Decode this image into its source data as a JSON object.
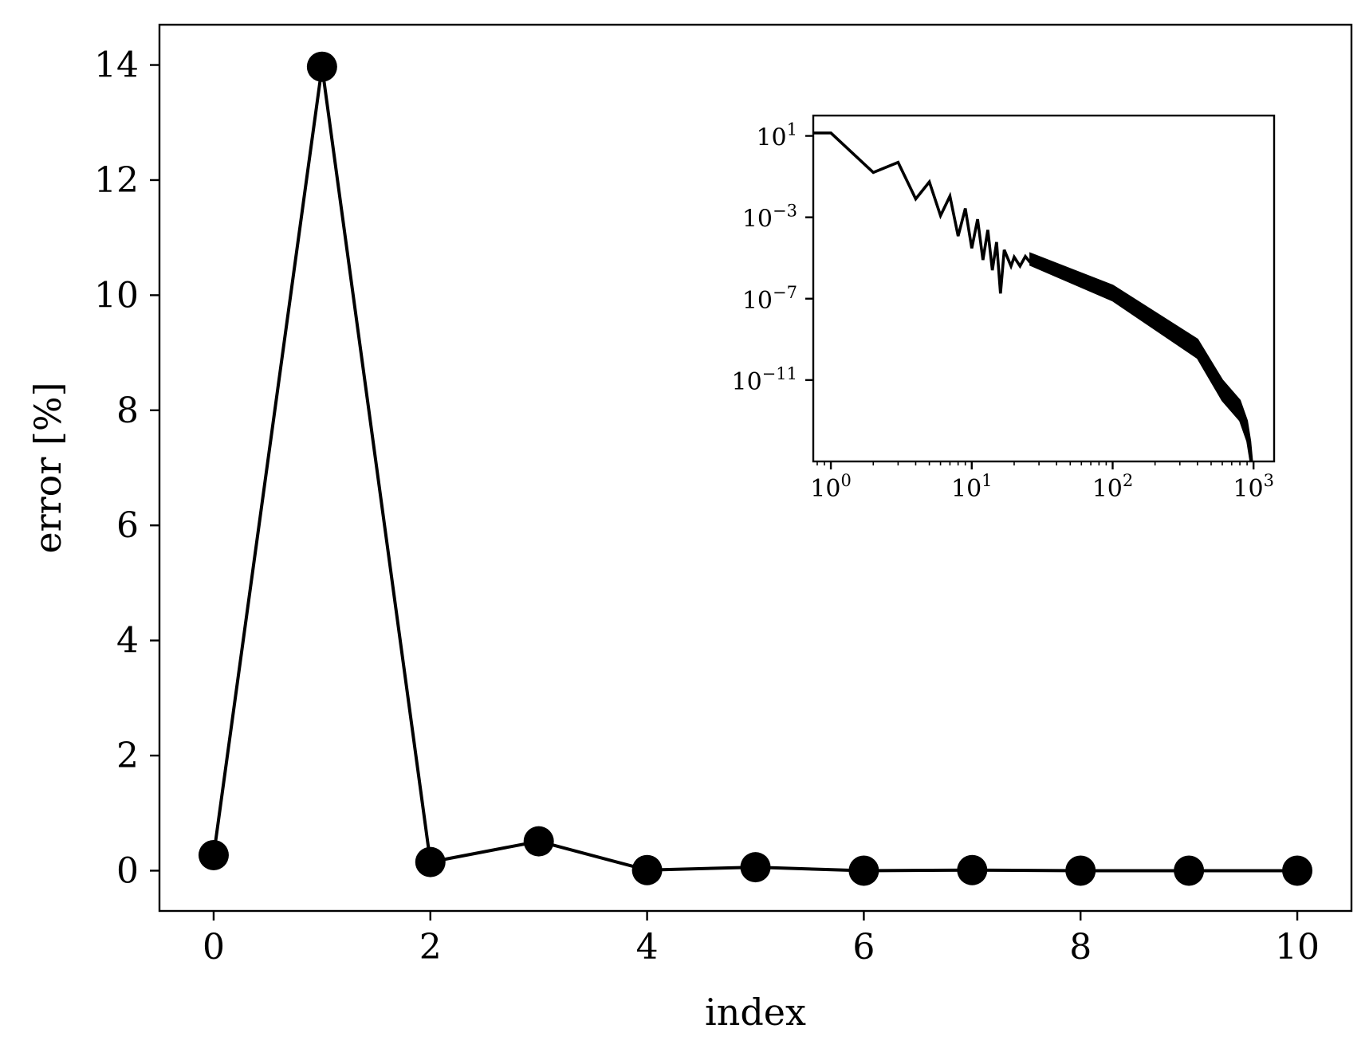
{
  "chart_data": [
    {
      "type": "line",
      "title": "",
      "xlabel": "index",
      "ylabel": "error [%]",
      "xlim": [
        -0.5,
        10.5
      ],
      "ylim": [
        -0.7,
        14.7
      ],
      "xticks": [
        0,
        2,
        4,
        6,
        8,
        10
      ],
      "yticks": [
        0,
        2,
        4,
        6,
        8,
        10,
        12,
        14
      ],
      "xtick_labels": [
        "0",
        "2",
        "4",
        "6",
        "8",
        "10"
      ],
      "ytick_labels": [
        "0",
        "2",
        "4",
        "6",
        "8",
        "10",
        "12",
        "14"
      ],
      "markers": "filled-circle",
      "grid": false,
      "series": [
        {
          "x": [
            0,
            1,
            2,
            3,
            4,
            5,
            6,
            7,
            8,
            9,
            10
          ],
          "y": [
            0.27,
            13.97,
            0.15,
            0.51,
            0.01,
            0.06,
            0.0,
            0.01,
            0.0,
            0.0,
            0.0
          ],
          "color": "#000000"
        }
      ]
    },
    {
      "type": "line",
      "role": "inset",
      "xscale": "log",
      "yscale": "log",
      "xlim": [
        0.75,
        1400
      ],
      "ylim": [
        1e-15,
        100
      ],
      "xticks": [
        {
          "base": "10",
          "exp": "0",
          "value": 1
        },
        {
          "base": "10",
          "exp": "1",
          "value": 10
        },
        {
          "base": "10",
          "exp": "2",
          "value": 100
        },
        {
          "base": "10",
          "exp": "3",
          "value": 1000
        }
      ],
      "yticks": [
        {
          "base": "10",
          "exp": "1",
          "value": 10
        },
        {
          "base": "10",
          "exp": "−3",
          "value": 0.001
        },
        {
          "base": "10",
          "exp": "−7",
          "value": 1e-07
        },
        {
          "base": "10",
          "exp": "−11",
          "value": 1e-11
        }
      ],
      "series": [
        {
          "color": "#000000",
          "head": [
            [
              0.75,
              14
            ],
            [
              1,
              14
            ],
            [
              2,
              0.16
            ],
            [
              3,
              0.5
            ],
            [
              4,
              0.008
            ],
            [
              5,
              0.055
            ],
            [
              6,
              0.0012
            ],
            [
              7,
              0.011
            ],
            [
              8,
              0.00012
            ],
            [
              9,
              0.0027
            ],
            [
              10,
              3e-05
            ],
            [
              11,
              0.0008
            ],
            [
              12,
              8e-06
            ],
            [
              13,
              0.00024
            ],
            [
              14,
              2.5e-06
            ],
            [
              15,
              6e-05
            ],
            [
              16,
              1.8e-07
            ],
            [
              17,
              2.5e-05
            ],
            [
              19,
              4e-06
            ],
            [
              20,
              1.1e-05
            ],
            [
              22,
              4e-06
            ],
            [
              24,
              1.2e-05
            ],
            [
              26,
              6e-06
            ]
          ],
          "band_upper": [
            [
              26,
              1.7e-05
            ],
            [
              100,
              4.5e-07
            ],
            [
              400,
              1e-09
            ],
            [
              600,
              1e-11
            ],
            [
              800,
              1e-12
            ],
            [
              900,
              1e-13
            ],
            [
              950,
              1e-14
            ],
            [
              980,
              1e-15
            ]
          ],
          "band_lower": [
            [
              26,
              4.5e-06
            ],
            [
              100,
              8e-08
            ],
            [
              400,
              1.2e-10
            ],
            [
              600,
              1e-12
            ],
            [
              800,
              1e-13
            ],
            [
              900,
              1e-14
            ],
            [
              950,
              1e-15
            ],
            [
              980,
              1e-15
            ]
          ]
        }
      ]
    }
  ]
}
